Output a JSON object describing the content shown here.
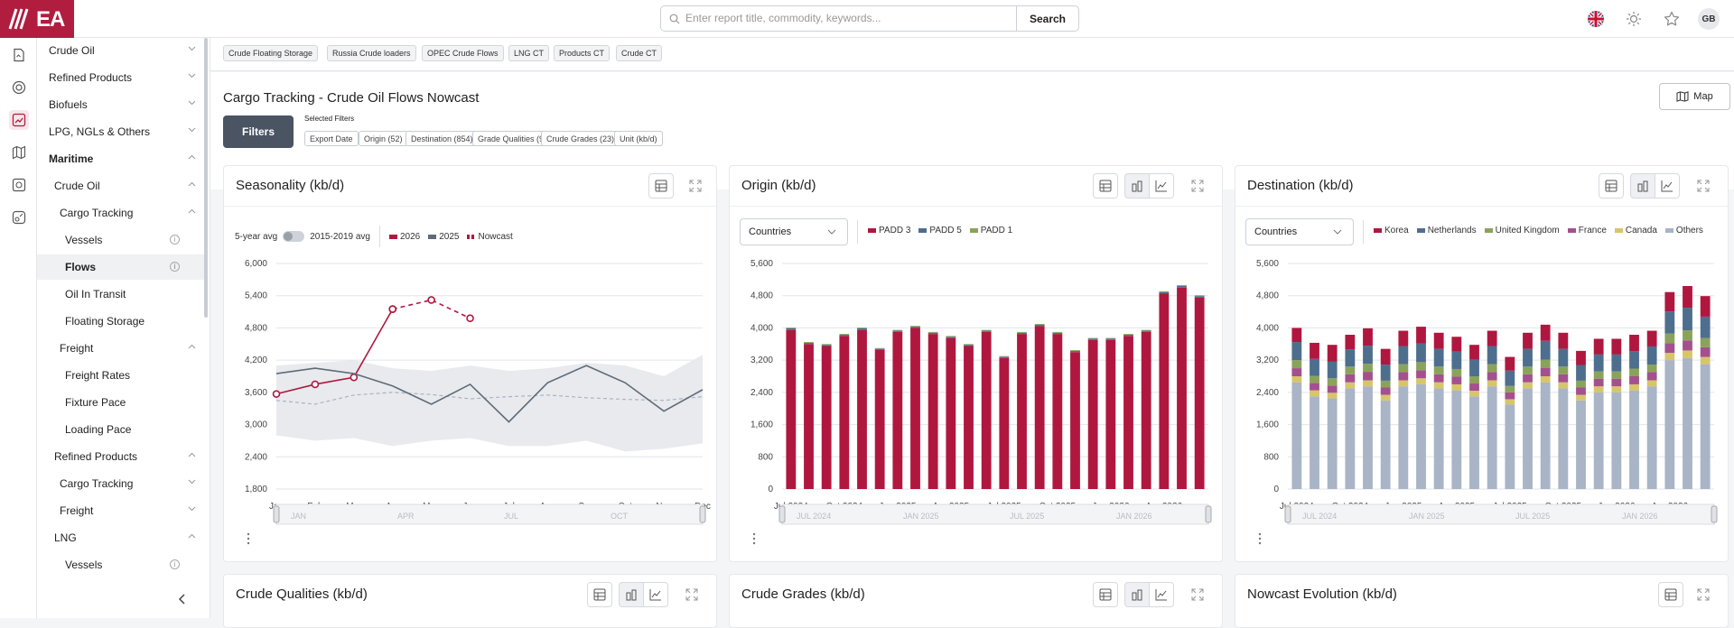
{
  "app": {
    "logo_text": "EA"
  },
  "search": {
    "placeholder": "Enter report title, commodity, keywords...",
    "value": "",
    "button": "Search"
  },
  "user": {
    "initials": "GB"
  },
  "icons": {
    "flag": "uk-flag-icon",
    "theme": "sun-icon",
    "favorite": "star-icon"
  },
  "sidebar": {
    "items": [
      {
        "label": "Crude Oil",
        "level": 0,
        "chev": "down"
      },
      {
        "label": "Refined Products",
        "level": 0,
        "chev": "down"
      },
      {
        "label": "Biofuels",
        "level": 0,
        "chev": "down"
      },
      {
        "label": "LPG, NGLs & Others",
        "level": 0,
        "chev": "down"
      },
      {
        "label": "Maritime",
        "level": 0,
        "chev": "up",
        "bold": true
      },
      {
        "label": "Crude Oil",
        "level": 1,
        "chev": "up"
      },
      {
        "label": "Cargo Tracking",
        "level": 2,
        "chev": "up"
      },
      {
        "label": "Vessels",
        "level": 3,
        "info": true
      },
      {
        "label": "Flows",
        "level": 3,
        "info": true,
        "active": true
      },
      {
        "label": "Oil In Transit",
        "level": 3
      },
      {
        "label": "Floating Storage",
        "level": 3
      },
      {
        "label": "Freight",
        "level": 2,
        "chev": "up"
      },
      {
        "label": "Freight Rates",
        "level": 3
      },
      {
        "label": "Fixture Pace",
        "level": 3
      },
      {
        "label": "Loading Pace",
        "level": 3
      },
      {
        "label": "Refined Products",
        "level": 1,
        "chev": "up"
      },
      {
        "label": "Cargo Tracking",
        "level": 2,
        "chev": "down"
      },
      {
        "label": "Freight",
        "level": 2,
        "chev": "down"
      },
      {
        "label": "LNG",
        "level": 1,
        "chev": "up"
      },
      {
        "label": "Vessels",
        "level": 3,
        "info": true
      }
    ]
  },
  "tags": [
    "Crude Floating Storage",
    "Russia Crude loaders",
    "OPEC Crude Flows",
    "LNG CT",
    "Products CT",
    "Crude CT"
  ],
  "page": {
    "title": "Cargo Tracking - Crude Oil Flows Nowcast",
    "map_button": "Map",
    "filters_button": "Filters",
    "selected_filters_label": "Selected Filters",
    "chips": [
      "Export Date",
      "Origin (52)",
      "Destination (854)",
      "Grade Qualities (9)",
      "Crude Grades (23)",
      "Unit (kb/d)"
    ]
  },
  "cards": {
    "seasonality": {
      "title": "Seasonality (kb/d)",
      "toggle_left": "5-year avg",
      "toggle_right": "2015-2019 avg"
    },
    "origin": {
      "title": "Origin (kb/d)",
      "dropdown": "Countries"
    },
    "destination": {
      "title": "Destination (kb/d)",
      "dropdown": "Countries"
    },
    "qualities": {
      "title": "Crude Qualities (kb/d)"
    },
    "grades": {
      "title": "Crude Grades (kb/d)"
    },
    "nowcast": {
      "title": "Nowcast Evolution (kb/d)"
    }
  },
  "colors": {
    "brand": "#b01d3f",
    "korea": "#b0173f",
    "netherlands": "#4e6e8e",
    "uk": "#8aa35b",
    "france": "#a4508e",
    "canada": "#d7c56a",
    "others": "#a9b4c6"
  },
  "chart_data": [
    {
      "type": "line",
      "title": "Seasonality (kb/d)",
      "categories": [
        "Jan",
        "Feb",
        "Mar",
        "Apr",
        "May",
        "Jun",
        "Jul",
        "Aug",
        "Sep",
        "Oct",
        "Nov",
        "Dec"
      ],
      "yticks": [
        "1,800",
        "2,400",
        "3,000",
        "3,600",
        "4,200",
        "4,800",
        "5,400",
        "6,000"
      ],
      "ylim": [
        1800,
        6000
      ],
      "series": [
        {
          "name": "2026",
          "color": "#b0173f",
          "values": [
            3570,
            3750,
            3880,
            5150,
            null,
            null,
            null,
            null,
            null,
            null,
            null,
            null
          ]
        },
        {
          "name": "2025",
          "color": "#5f6b78",
          "values": [
            3950,
            4050,
            3950,
            3720,
            3380,
            3750,
            3050,
            3780,
            4100,
            3780,
            3250,
            3650
          ]
        },
        {
          "name": "Nowcast",
          "color": "#b0173f",
          "dashed": true,
          "values": [
            null,
            null,
            null,
            5150,
            5320,
            4980,
            null,
            null,
            null,
            null,
            null,
            null
          ]
        }
      ],
      "avg_line": [
        3450,
        3380,
        3550,
        3600,
        3560,
        3480,
        3520,
        3550,
        3500,
        3470,
        3450,
        3520
      ],
      "range_min": [
        2800,
        2700,
        2750,
        2600,
        2700,
        2750,
        2600,
        2600,
        2700,
        2500,
        2550,
        2650
      ],
      "range_max": [
        4100,
        4150,
        4200,
        4050,
        4000,
        4100,
        4000,
        4050,
        4150,
        4100,
        3900,
        4300
      ],
      "navigator_labels": [
        "JAN",
        "APR",
        "JUL",
        "OCT"
      ]
    },
    {
      "type": "bar",
      "title": "Origin (kb/d)",
      "categories": [
        "Jul 2024",
        "Aug 2024",
        "Sep 2024",
        "Oct 2024",
        "Nov 2024",
        "Dec 2024",
        "Jan 2025",
        "Feb 2025",
        "Mar 2025",
        "Apr 2025",
        "May 2025",
        "Jun 2025",
        "Jul 2025",
        "Aug 2025",
        "Sep 2025",
        "Oct 2025",
        "Nov 2025",
        "Dec 2025",
        "Jan 2026",
        "Feb 2026",
        "Mar 2026",
        "Apr 2026",
        "May 2026",
        "Jun 2026"
      ],
      "xtick_labels": [
        "Jul 2024",
        "Oct 2024",
        "Jan 2025",
        "Apr 2025",
        "Jul 2025",
        "Oct 2025",
        "Jan 2026",
        "Apr 2026"
      ],
      "yticks": [
        "0",
        "800",
        "1,600",
        "2,400",
        "3,200",
        "4,000",
        "4,800",
        "5,600"
      ],
      "ylim": [
        0,
        5600
      ],
      "series": [
        {
          "name": "PADD 3",
          "color": "#b0173f",
          "values": [
            3950,
            3600,
            3550,
            3800,
            3950,
            3450,
            3900,
            4000,
            3850,
            3750,
            3550,
            3900,
            3250,
            3850,
            4050,
            3850,
            3400,
            3700,
            3700,
            3800,
            3900,
            4850,
            5000,
            4750
          ]
        },
        {
          "name": "PADD 5",
          "color": "#4e6e8e",
          "values": [
            40,
            30,
            30,
            30,
            40,
            30,
            30,
            30,
            30,
            30,
            30,
            30,
            30,
            30,
            30,
            30,
            30,
            30,
            30,
            30,
            30,
            40,
            40,
            40
          ]
        },
        {
          "name": "PADD 1",
          "color": "#8aa35b",
          "values": [
            20,
            20,
            20,
            20,
            20,
            20,
            20,
            20,
            20,
            20,
            20,
            20,
            20,
            20,
            20,
            20,
            20,
            20,
            20,
            20,
            20,
            20,
            20,
            20
          ]
        }
      ],
      "navigator_labels": [
        "JUL 2024",
        "JAN 2025",
        "JUL 2025",
        "JAN 2026"
      ]
    },
    {
      "type": "bar",
      "stacked": true,
      "title": "Destination (kb/d)",
      "categories": [
        "Jul 2024",
        "Aug 2024",
        "Sep 2024",
        "Oct 2024",
        "Nov 2024",
        "Dec 2024",
        "Jan 2025",
        "Feb 2025",
        "Mar 2025",
        "Apr 2025",
        "May 2025",
        "Jun 2025",
        "Jul 2025",
        "Aug 2025",
        "Sep 2025",
        "Oct 2025",
        "Nov 2025",
        "Dec 2025",
        "Jan 2026",
        "Feb 2026",
        "Mar 2026",
        "Apr 2026",
        "May 2026",
        "Jun 2026"
      ],
      "xtick_labels": [
        "Jul 2024",
        "Oct 2024",
        "Jan 2025",
        "Apr 2025",
        "Jul 2025",
        "Oct 2025",
        "Jan 2026",
        "Apr 2026"
      ],
      "yticks": [
        "0",
        "800",
        "1,600",
        "2,400",
        "3,200",
        "4,000",
        "4,800",
        "5,600"
      ],
      "ylim": [
        0,
        5600
      ],
      "series": [
        {
          "name": "Others",
          "color": "#a9b4c6",
          "values": [
            2650,
            2300,
            2250,
            2500,
            2550,
            2200,
            2550,
            2600,
            2500,
            2450,
            2300,
            2550,
            2100,
            2500,
            2650,
            2500,
            2200,
            2400,
            2400,
            2450,
            2550,
            3200,
            3250,
            3100
          ]
        },
        {
          "name": "Canada",
          "color": "#d7c56a",
          "values": [
            150,
            150,
            140,
            150,
            150,
            140,
            150,
            150,
            150,
            150,
            140,
            150,
            130,
            150,
            150,
            150,
            140,
            150,
            150,
            150,
            150,
            180,
            190,
            180
          ]
        },
        {
          "name": "France",
          "color": "#a4508e",
          "values": [
            200,
            180,
            180,
            200,
            210,
            180,
            200,
            200,
            200,
            190,
            180,
            200,
            170,
            200,
            210,
            200,
            180,
            190,
            190,
            200,
            200,
            240,
            250,
            240
          ]
        },
        {
          "name": "United Kingdom",
          "color": "#8aa35b",
          "values": [
            200,
            180,
            180,
            190,
            200,
            170,
            200,
            200,
            190,
            190,
            180,
            200,
            160,
            190,
            200,
            190,
            170,
            180,
            180,
            190,
            190,
            240,
            250,
            230
          ]
        },
        {
          "name": "Netherlands",
          "color": "#4e6e8e",
          "values": [
            450,
            420,
            410,
            430,
            450,
            400,
            450,
            460,
            440,
            430,
            410,
            450,
            380,
            440,
            470,
            440,
            390,
            420,
            420,
            430,
            450,
            550,
            560,
            530
          ]
        },
        {
          "name": "Korea",
          "color": "#b0173f",
          "values": [
            350,
            400,
            420,
            360,
            430,
            390,
            380,
            420,
            400,
            370,
            370,
            380,
            340,
            400,
            400,
            400,
            350,
            390,
            390,
            410,
            390,
            480,
            540,
            510
          ]
        }
      ],
      "legend_order": [
        "Korea",
        "Netherlands",
        "United Kingdom",
        "France",
        "Canada",
        "Others"
      ],
      "navigator_labels": [
        "JUL 2024",
        "JAN 2025",
        "JUL 2025",
        "JAN 2026"
      ]
    }
  ]
}
